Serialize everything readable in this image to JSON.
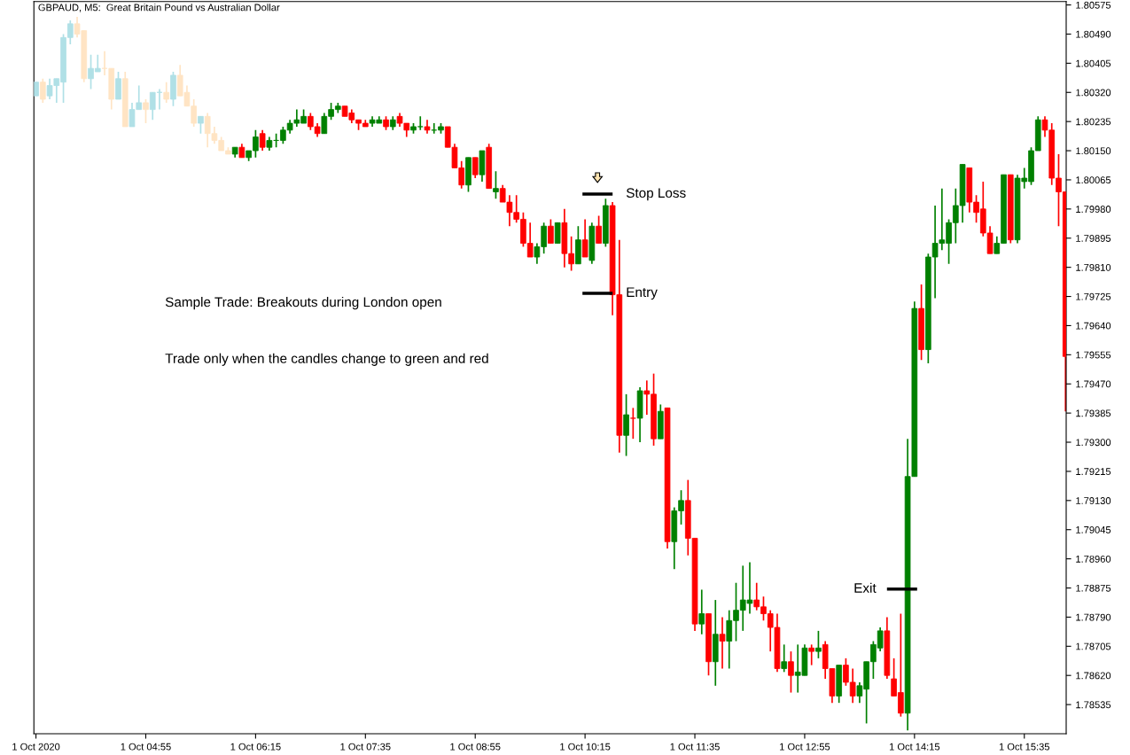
{
  "chart_data": {
    "type": "candlestick",
    "title": "GBPAUD, M5:  Great Britain Pound vs Australian Dollar",
    "categories": [
      "1 Oct 2020",
      null,
      null,
      null,
      null,
      null,
      null,
      null,
      null,
      null,
      null,
      null,
      null,
      null,
      null,
      null,
      "1 Oct 04:55",
      null,
      null,
      null,
      null,
      null,
      null,
      null,
      null,
      null,
      null,
      null,
      null,
      null,
      null,
      null,
      "1 Oct 06:15",
      null,
      null,
      null,
      null,
      null,
      null,
      null,
      null,
      null,
      null,
      null,
      null,
      null,
      null,
      null,
      "1 Oct 07:35",
      null,
      null,
      null,
      null,
      null,
      null,
      null,
      null,
      null,
      null,
      null,
      null,
      null,
      null,
      null,
      "1 Oct 08:55",
      null,
      null,
      null,
      null,
      null,
      null,
      null,
      null,
      null,
      null,
      null,
      null,
      null,
      null,
      null,
      "1 Oct 10:15",
      null,
      null,
      null,
      null,
      null,
      null,
      null,
      null,
      null,
      null,
      null,
      null,
      null,
      null,
      null,
      "1 Oct 11:35",
      null,
      null,
      null,
      null,
      null,
      null,
      null,
      null,
      null,
      null,
      null,
      null,
      null,
      null,
      null,
      "1 Oct 12:55",
      null,
      null,
      null,
      null,
      null,
      null,
      null,
      null,
      null,
      null,
      null,
      null,
      null,
      null,
      null,
      "1 Oct 14:15",
      null,
      null,
      null,
      null,
      null,
      null,
      null,
      null,
      null,
      null,
      null,
      null,
      null,
      null,
      null,
      "1 Oct 15:35",
      null,
      null,
      null,
      null,
      null,
      null
    ],
    "ohlc": [
      [
        1.8031,
        1.8035,
        1.8031,
        1.8035
      ],
      [
        1.8035,
        1.8036,
        1.8029,
        1.803
      ],
      [
        1.8031,
        1.8036,
        1.803,
        1.8034
      ],
      [
        1.8034,
        1.8036,
        1.8029,
        1.8036
      ],
      [
        1.8035,
        1.8049,
        1.8029,
        1.8048
      ],
      [
        1.8048,
        1.8053,
        1.8046,
        1.8052
      ],
      [
        1.8052,
        1.8054,
        1.8048,
        1.8049
      ],
      [
        1.805,
        1.805,
        1.8035,
        1.8036
      ],
      [
        1.8036,
        1.8043,
        1.8033,
        1.8039
      ],
      [
        1.8038,
        1.8043,
        1.8038,
        1.8039
      ],
      [
        1.8039,
        1.8044,
        1.8037,
        1.8039
      ],
      [
        1.8039,
        1.8039,
        1.8027,
        1.803
      ],
      [
        1.803,
        1.8038,
        1.803,
        1.8036
      ],
      [
        1.8036,
        1.8038,
        1.8022,
        1.8022
      ],
      [
        1.8022,
        1.8029,
        1.8022,
        1.8027
      ],
      [
        1.8027,
        1.8034,
        1.8027,
        1.8029
      ],
      [
        1.8029,
        1.803,
        1.8023,
        1.8027
      ],
      [
        1.8027,
        1.8032,
        1.8024,
        1.8032
      ],
      [
        1.8032,
        1.8033,
        1.8027,
        1.8032
      ],
      [
        1.8032,
        1.8035,
        1.8029,
        1.803
      ],
      [
        1.803,
        1.8038,
        1.8028,
        1.8037
      ],
      [
        1.8037,
        1.804,
        1.8031,
        1.8031
      ],
      [
        1.8032,
        1.8034,
        1.8028,
        1.8028
      ],
      [
        1.8028,
        1.803,
        1.8022,
        1.8023
      ],
      [
        1.8023,
        1.8025,
        1.802,
        1.8025
      ],
      [
        1.8025,
        1.8026,
        1.8016,
        1.802
      ],
      [
        1.802,
        1.8022,
        1.8017,
        1.8018
      ],
      [
        1.8018,
        1.8019,
        1.8015,
        1.8015
      ],
      [
        1.8015,
        1.8016,
        1.8014,
        1.8014
      ],
      [
        1.8014,
        1.8016,
        1.8013,
        1.8016
      ],
      [
        1.8016,
        1.8017,
        1.8013,
        1.8013
      ],
      [
        1.8013,
        1.8015,
        1.8012,
        1.8015
      ],
      [
        1.8015,
        1.8021,
        1.8013,
        1.8019
      ],
      [
        1.802,
        1.8021,
        1.8015,
        1.8016
      ],
      [
        1.8016,
        1.8019,
        1.8015,
        1.8018
      ],
      [
        1.8018,
        1.802,
        1.8016,
        1.8018
      ],
      [
        1.8018,
        1.8022,
        1.8017,
        1.8021
      ],
      [
        1.8021,
        1.8024,
        1.802,
        1.8023
      ],
      [
        1.8023,
        1.8027,
        1.8022,
        1.8024
      ],
      [
        1.8023,
        1.8027,
        1.8023,
        1.8025
      ],
      [
        1.8025,
        1.8026,
        1.8021,
        1.8022
      ],
      [
        1.8022,
        1.8023,
        1.8019,
        1.802
      ],
      [
        1.802,
        1.8026,
        1.802,
        1.8025
      ],
      [
        1.8025,
        1.8029,
        1.8024,
        1.8027
      ],
      [
        1.8027,
        1.8029,
        1.8026,
        1.8028
      ],
      [
        1.8028,
        1.8028,
        1.8025,
        1.8025
      ],
      [
        1.8026,
        1.8027,
        1.8023,
        1.8024
      ],
      [
        1.8024,
        1.8024,
        1.8021,
        1.8023
      ],
      [
        1.8023,
        1.8024,
        1.8022,
        1.8022
      ],
      [
        1.8023,
        1.8025,
        1.8022,
        1.8024
      ],
      [
        1.8023,
        1.8025,
        1.8023,
        1.8024
      ],
      [
        1.8024,
        1.8025,
        1.8021,
        1.8022
      ],
      [
        1.8022,
        1.8025,
        1.8021,
        1.8024
      ],
      [
        1.8025,
        1.8026,
        1.8022,
        1.8023
      ],
      [
        1.8023,
        1.8023,
        1.8019,
        1.8021
      ],
      [
        1.8021,
        1.8023,
        1.802,
        1.8022
      ],
      [
        1.8022,
        1.8025,
        1.8021,
        1.8022
      ],
      [
        1.8022,
        1.8024,
        1.802,
        1.8021
      ],
      [
        1.8021,
        1.8023,
        1.802,
        1.8021
      ],
      [
        1.8021,
        1.8023,
        1.802,
        1.8022
      ],
      [
        1.8022,
        1.8022,
        1.8016,
        1.8016
      ],
      [
        1.8016,
        1.8017,
        1.801,
        1.801
      ],
      [
        1.801,
        1.8012,
        1.8004,
        1.8005
      ],
      [
        1.8005,
        1.8013,
        1.8003,
        1.8013
      ],
      [
        1.8013,
        1.8013,
        1.8007,
        1.8008
      ],
      [
        1.8008,
        1.8015,
        1.8006,
        1.8015
      ],
      [
        1.8016,
        1.8017,
        1.8004,
        1.8004
      ],
      [
        1.8003,
        1.8009,
        1.8001,
        1.8004
      ],
      [
        1.8004,
        1.8005,
        1.8,
        1.8
      ],
      [
        1.8,
        1.8002,
        1.7993,
        1.7997
      ],
      [
        1.7997,
        1.8002,
        1.7994,
        1.7995
      ],
      [
        1.7995,
        1.7997,
        1.7987,
        1.7988
      ],
      [
        1.7988,
        1.7994,
        1.7984,
        1.7984
      ],
      [
        1.7984,
        1.7988,
        1.7982,
        1.7987
      ],
      [
        1.7987,
        1.7994,
        1.7985,
        1.7993
      ],
      [
        1.7993,
        1.7995,
        1.7988,
        1.7988
      ],
      [
        1.7988,
        1.7994,
        1.7988,
        1.7994
      ],
      [
        1.7994,
        1.7998,
        1.7981,
        1.7985
      ],
      [
        1.7985,
        1.799,
        1.798,
        1.7982
      ],
      [
        1.7982,
        1.7993,
        1.7982,
        1.7989
      ],
      [
        1.7989,
        1.7995,
        1.7984,
        1.7984
      ],
      [
        1.7983,
        1.7994,
        1.7982,
        1.7993
      ],
      [
        1.7993,
        1.7996,
        1.7988,
        1.7988
      ],
      [
        1.7988,
        1.8001,
        1.7987,
        1.7999
      ],
      [
        1.7999,
        1.8,
        1.7967,
        1.7973
      ],
      [
        1.7973,
        1.7989,
        1.7927,
        1.7932
      ],
      [
        1.7932,
        1.7944,
        1.7926,
        1.7938
      ],
      [
        1.7937,
        1.794,
        1.7931,
        1.7937
      ],
      [
        1.7937,
        1.7946,
        1.793,
        1.7945
      ],
      [
        1.7945,
        1.7948,
        1.7938,
        1.7944
      ],
      [
        1.7944,
        1.795,
        1.7929,
        1.7931
      ],
      [
        1.7931,
        1.7941,
        1.7931,
        1.7939
      ],
      [
        1.794,
        1.794,
        1.7899,
        1.7901
      ],
      [
        1.7901,
        1.7911,
        1.7893,
        1.791
      ],
      [
        1.791,
        1.7916,
        1.7906,
        1.7913
      ],
      [
        1.7913,
        1.7919,
        1.7897,
        1.7902
      ],
      [
        1.7902,
        1.7902,
        1.7875,
        1.7877
      ],
      [
        1.7877,
        1.7887,
        1.7874,
        1.788
      ],
      [
        1.788,
        1.788,
        1.7862,
        1.7866
      ],
      [
        1.7866,
        1.7884,
        1.7859,
        1.7874
      ],
      [
        1.7874,
        1.7879,
        1.7864,
        1.7872
      ],
      [
        1.7872,
        1.7881,
        1.7864,
        1.7878
      ],
      [
        1.7878,
        1.7889,
        1.7872,
        1.7881
      ],
      [
        1.7881,
        1.7894,
        1.7875,
        1.7884
      ],
      [
        1.7883,
        1.7895,
        1.788,
        1.7884
      ],
      [
        1.7884,
        1.7889,
        1.7881,
        1.7882
      ],
      [
        1.7882,
        1.7885,
        1.7878,
        1.788
      ],
      [
        1.788,
        1.7881,
        1.7869,
        1.7876
      ],
      [
        1.7876,
        1.788,
        1.7863,
        1.7864
      ],
      [
        1.7864,
        1.7871,
        1.7863,
        1.7866
      ],
      [
        1.7866,
        1.7869,
        1.7857,
        1.7862
      ],
      [
        1.7862,
        1.7871,
        1.7857,
        1.7863
      ],
      [
        1.7862,
        1.7871,
        1.7862,
        1.787
      ],
      [
        1.787,
        1.7871,
        1.7865,
        1.7869
      ],
      [
        1.7869,
        1.7875,
        1.7867,
        1.787
      ],
      [
        1.7871,
        1.7872,
        1.7861,
        1.7864
      ],
      [
        1.7864,
        1.7864,
        1.7854,
        1.7856
      ],
      [
        1.7856,
        1.7865,
        1.7854,
        1.7865
      ],
      [
        1.7865,
        1.7867,
        1.7859,
        1.786
      ],
      [
        1.786,
        1.7864,
        1.7854,
        1.7856
      ],
      [
        1.7856,
        1.786,
        1.7854,
        1.7859
      ],
      [
        1.7858,
        1.7866,
        1.7848,
        1.7866
      ],
      [
        1.7866,
        1.7872,
        1.7861,
        1.7871
      ],
      [
        1.787,
        1.7876,
        1.7869,
        1.7875
      ],
      [
        1.7875,
        1.7879,
        1.7861,
        1.7862
      ],
      [
        1.7861,
        1.7867,
        1.7856,
        1.7856
      ],
      [
        1.7857,
        1.788,
        1.785,
        1.7851
      ],
      [
        1.7851,
        1.7931,
        1.7846,
        1.792
      ],
      [
        1.792,
        1.7971,
        1.792,
        1.7969
      ],
      [
        1.7969,
        1.7976,
        1.7954,
        1.7957
      ],
      [
        1.7957,
        1.7985,
        1.7953,
        1.7984
      ],
      [
        1.7984,
        1.7999,
        1.7972,
        1.7988
      ],
      [
        1.7988,
        1.8004,
        1.7986,
        1.7989
      ],
      [
        1.7988,
        1.7995,
        1.7982,
        1.7994
      ],
      [
        1.7994,
        1.8004,
        1.7988,
        1.7999
      ],
      [
        1.7999,
        1.8011,
        1.7994,
        1.8011
      ],
      [
        1.801,
        1.801,
        1.7997,
        1.8
      ],
      [
        1.8,
        1.8002,
        1.7994,
        1.7997
      ],
      [
        1.7998,
        1.8006,
        1.799,
        1.7991
      ],
      [
        1.7991,
        1.7993,
        1.7985,
        1.7985
      ],
      [
        1.7985,
        1.799,
        1.7985,
        1.7988
      ],
      [
        1.7988,
        1.8008,
        1.7988,
        1.8008
      ],
      [
        1.8008,
        1.8008,
        1.7988,
        1.7989
      ],
      [
        1.7989,
        1.8008,
        1.7988,
        1.8007
      ],
      [
        1.8006,
        1.801,
        1.8004,
        1.8007
      ],
      [
        1.8006,
        1.8016,
        1.8005,
        1.8015
      ],
      [
        1.8015,
        1.8025,
        1.8015,
        1.8024
      ],
      [
        1.8024,
        1.8025,
        1.8019,
        1.8021
      ],
      [
        1.8021,
        1.8023,
        1.8005,
        1.8007
      ],
      [
        1.8007,
        1.8014,
        1.7993,
        1.8003
      ],
      [
        1.8003,
        1.8003,
        1.7939,
        1.7955
      ]
    ],
    "colors": [
      "#b0e0e6",
      "#ffe4c4",
      "#b0e0e6",
      "#b0e0e6",
      "#b0e0e6",
      "#b0e0e6",
      "#ffe4c4",
      "#ffe4c4",
      "#b0e0e6",
      "#b0e0e6",
      "#ffe4c4",
      "#ffe4c4",
      "#b0e0e6",
      "#ffe4c4",
      "#b0e0e6",
      "#b0e0e6",
      "#ffe4c4",
      "#b0e0e6",
      "#b0e0e6",
      "#ffe4c4",
      "#b0e0e6",
      "#ffe4c4",
      "#ffe4c4",
      "#ffe4c4",
      "#b0e0e6",
      "#ffe4c4",
      "#ffe4c4",
      "#ffe4c4",
      "#ffe4c4",
      "#008000",
      "#ff0000",
      "#008000",
      "#008000",
      "#ff0000",
      "#008000",
      "#008000",
      "#008000",
      "#008000",
      "#008000",
      "#008000",
      "#ff0000",
      "#ff0000",
      "#008000",
      "#008000",
      "#008000",
      "#ff0000",
      "#ff0000",
      "#ff0000",
      "#ff0000",
      "#008000",
      "#008000",
      "#ff0000",
      "#008000",
      "#ff0000",
      "#ff0000",
      "#008000",
      "#008000",
      "#ff0000",
      "#008000",
      "#008000",
      "#ff0000",
      "#ff0000",
      "#ff0000",
      "#008000",
      "#ff0000",
      "#008000",
      "#ff0000",
      "#008000",
      "#ff0000",
      "#ff0000",
      "#ff0000",
      "#ff0000",
      "#ff0000",
      "#008000",
      "#008000",
      "#ff0000",
      "#008000",
      "#ff0000",
      "#ff0000",
      "#008000",
      "#ff0000",
      "#008000",
      "#ff0000",
      "#008000",
      "#ff0000",
      "#ff0000",
      "#008000",
      "#ff0000",
      "#008000",
      "#ff0000",
      "#ff0000",
      "#008000",
      "#ff0000",
      "#008000",
      "#008000",
      "#ff0000",
      "#ff0000",
      "#008000",
      "#ff0000",
      "#008000",
      "#ff0000",
      "#008000",
      "#008000",
      "#008000",
      "#008000",
      "#ff0000",
      "#ff0000",
      "#ff0000",
      "#ff0000",
      "#008000",
      "#ff0000",
      "#008000",
      "#008000",
      "#ff0000",
      "#008000",
      "#ff0000",
      "#ff0000",
      "#008000",
      "#ff0000",
      "#ff0000",
      "#008000",
      "#008000",
      "#008000",
      "#008000",
      "#ff0000",
      "#ff0000",
      "#ff0000",
      "#008000",
      "#008000",
      "#ff0000",
      "#008000",
      "#008000",
      "#008000",
      "#008000",
      "#008000",
      "#008000",
      "#ff0000",
      "#ff0000",
      "#ff0000",
      "#ff0000",
      "#008000",
      "#008000",
      "#ff0000",
      "#008000",
      "#008000",
      "#008000",
      "#008000",
      "#ff0000",
      "#ff0000",
      "#ff0000",
      "#ff0000"
    ],
    "ylim": [
      1.7845,
      1.80585
    ],
    "yticks": [
      1.78535,
      {
        "value": 1.7862,
        "label": "1.78620"
      },
      1.78705,
      {
        "value": 1.7879,
        "label": "1.78790"
      },
      1.78875,
      {
        "value": 1.7896,
        "label": "1.78960"
      },
      1.79045,
      {
        "value": 1.7913,
        "label": "1.79130"
      },
      1.79215,
      {
        "value": 1.793,
        "label": "1.79300"
      },
      1.79385,
      {
        "value": 1.7947,
        "label": "1.79470"
      },
      1.79555,
      {
        "value": 1.7964,
        "label": "1.79640"
      },
      1.79725,
      {
        "value": 1.7981,
        "label": "1.79810"
      },
      1.79895,
      {
        "value": 1.7998,
        "label": "1.79980"
      },
      1.80065,
      {
        "value": 1.8015,
        "label": "1.80150"
      },
      1.80235,
      {
        "value": 1.8032,
        "label": "1.80320"
      },
      1.80405,
      {
        "value": 1.8049,
        "label": "1.80490"
      },
      1.80575
    ],
    "annotations": [
      "Stop Loss",
      "Entry",
      "Exit",
      "Sample Trade: Breakouts during London open",
      "Trade only when the candles change to green and red"
    ]
  }
}
